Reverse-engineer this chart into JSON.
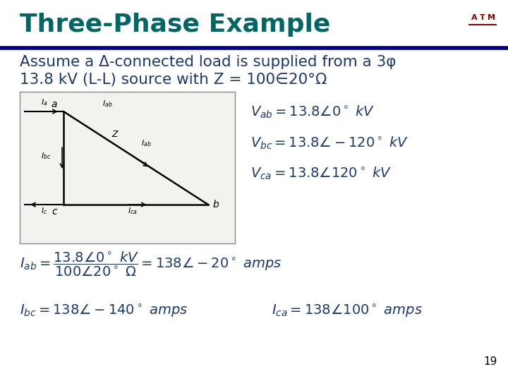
{
  "title": "Three-Phase Example",
  "title_color": "#006666",
  "title_fontsize": 26,
  "header_line_color": "#00008B",
  "bg_color": "#FFFFFF",
  "text_color": "#1a3a6e",
  "body_line1": "Assume a Δ-connected load is supplied from a 3φ",
  "body_line2": "13.8 kV (L-L) source with Z = 100∈20°Ω",
  "body_fontsize": 15.5,
  "eq1": "$V_{ab} = 13.8\\angle 0^\\circ\\ kV$",
  "eq2": "$V_{bc} = 13.8\\angle -120^\\circ\\ kV$",
  "eq3": "$V_{ca} = 13.8\\angle 120^\\circ\\ kV$",
  "eq_iab": "$I_{ab} = \\dfrac{13.8\\angle 0^\\circ\\ kV}{100\\angle 20^\\circ\\ \\Omega} = 138\\angle -20^\\circ\\ amps$",
  "eq_ibc": "$I_{bc} = 138\\angle -140^\\circ\\ amps$",
  "eq_ica": "$I_{ca} = 138\\angle 100^\\circ\\ amps$",
  "page_number": "19",
  "logo_color": "#8B0000",
  "diagram_facecolor": "#f2f2ee"
}
